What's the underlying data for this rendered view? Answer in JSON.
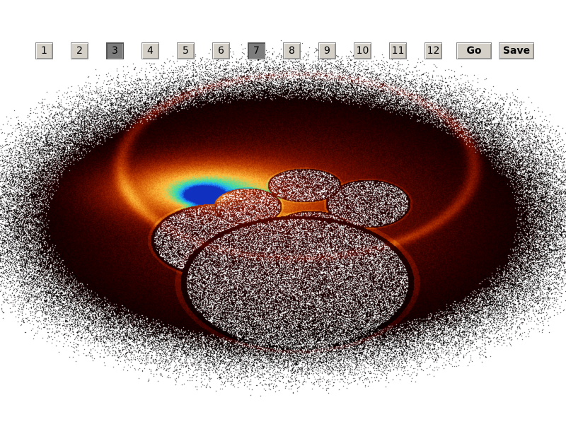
{
  "toolbar": {
    "numbers": [
      "1",
      "2",
      "3",
      "4",
      "5",
      "6",
      "7",
      "8",
      "9",
      "10",
      "11",
      "12"
    ],
    "active": [
      "3",
      "7"
    ],
    "go_label": "Go",
    "save_label": "Save"
  },
  "view": {
    "name": "fractal-flame-render",
    "palette": [
      "#000000",
      "#2a0000",
      "#6e0c00",
      "#b03000",
      "#e07010",
      "#ffc040",
      "#40e0a0",
      "#20a0ff",
      "#1030c0"
    ]
  }
}
